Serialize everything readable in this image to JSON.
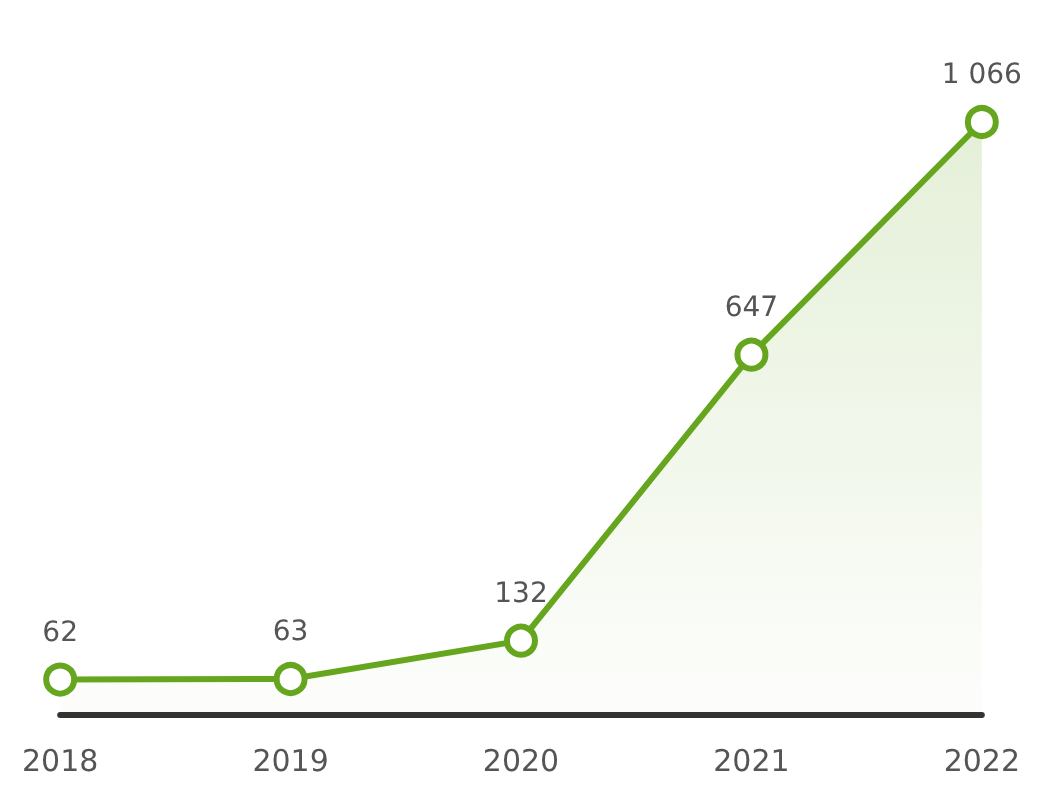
{
  "chart_data": {
    "type": "area",
    "categories": [
      "2018",
      "2019",
      "2020",
      "2021",
      "2022"
    ],
    "series": [
      {
        "color": "#66a61e",
        "values": [
          62,
          63,
          132,
          647,
          1066
        ],
        "value_labels": [
          "62",
          "63",
          "132",
          "647",
          "1 066"
        ]
      }
    ],
    "marker": "circle",
    "grid": false
  }
}
